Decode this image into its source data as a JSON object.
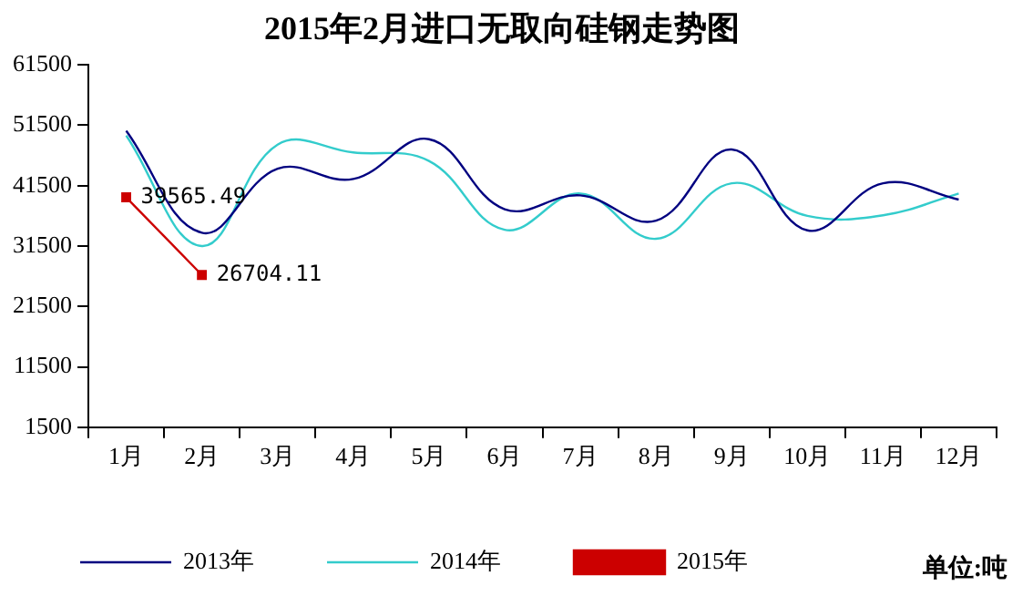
{
  "chart_data": {
    "type": "line",
    "title": "2015年2月进口无取向硅钢走势图",
    "categories": [
      "1月",
      "2月",
      "3月",
      "4月",
      "5月",
      "6月",
      "7月",
      "8月",
      "9月",
      "10月",
      "11月",
      "12月"
    ],
    "series": [
      {
        "name": "2013年",
        "color": "#000080",
        "marker": "none",
        "values": [
          50600,
          33700,
          44300,
          42600,
          49200,
          37600,
          39900,
          35700,
          47500,
          34100,
          41900,
          39200
        ]
      },
      {
        "name": "2014年",
        "color": "#33cccc",
        "marker": "none",
        "values": [
          49800,
          31500,
          48300,
          47000,
          45600,
          34200,
          40200,
          32700,
          41900,
          36500,
          36600,
          40200
        ]
      },
      {
        "name": "2015年",
        "color": "#cc0000",
        "marker": "square",
        "values": [
          39565.49,
          26704.11,
          null,
          null,
          null,
          null,
          null,
          null,
          null,
          null,
          null,
          null
        ],
        "value_labels": [
          "39565.49",
          "26704.11",
          null,
          null,
          null,
          null,
          null,
          null,
          null,
          null,
          null,
          null
        ]
      }
    ],
    "ylim": [
      1500,
      61500
    ],
    "yticks": [
      1500,
      11500,
      21500,
      31500,
      41500,
      51500,
      61500
    ],
    "grid": false,
    "legend": "bottom",
    "annotations": [
      "单位:吨"
    ]
  }
}
